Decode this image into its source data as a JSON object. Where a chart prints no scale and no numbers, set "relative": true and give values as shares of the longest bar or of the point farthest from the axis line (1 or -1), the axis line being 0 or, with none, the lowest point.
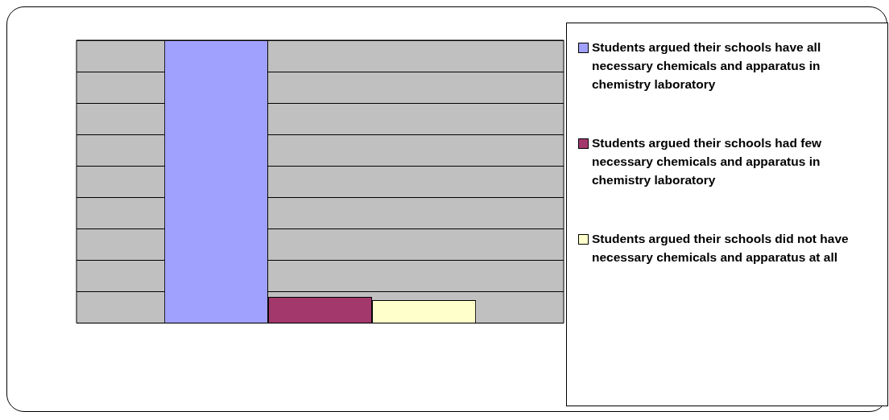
{
  "chart_data": {
    "type": "bar",
    "relative": true,
    "categories": [
      null
    ],
    "grid": "y",
    "legend": "right",
    "series": [
      {
        "name": "Students argued their schools have all necessary chemicals and apparatus in chemistry laboratory",
        "color": "#a0a0ff",
        "values": [
          1
        ]
      },
      {
        "name": "Students argued their schools had few necessary chemicals and apparatus in chemistry laboratory",
        "color": "#a3386c",
        "values": [
          0.093
        ]
      },
      {
        "name": "Students argued their schools did not have necessary chemicals and apparatus at all",
        "color": "#ffffcc",
        "values": [
          0.081
        ]
      }
    ]
  }
}
